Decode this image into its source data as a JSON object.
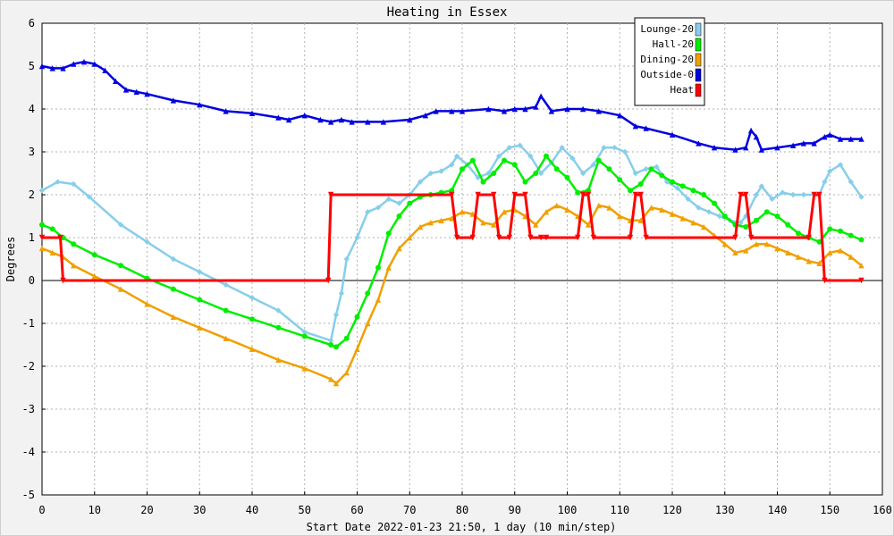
{
  "chart_data": {
    "type": "line",
    "title": "Heating in Essex",
    "xlabel": "Start Date 2022-01-23 21:50, 1 day (10 min/step)",
    "ylabel": "Degrees",
    "xlim": [
      0,
      160
    ],
    "ylim": [
      -5,
      6
    ],
    "xticks": [
      0,
      10,
      20,
      30,
      40,
      50,
      60,
      70,
      80,
      90,
      100,
      110,
      120,
      130,
      140,
      150,
      160
    ],
    "yticks": [
      -5,
      -4,
      -3,
      -2,
      -1,
      0,
      1,
      2,
      3,
      4,
      5,
      6
    ],
    "grid": true,
    "legend_position": "top-right",
    "series": [
      {
        "name": "Lounge-20",
        "color": "#87CEEB",
        "marker": "diamond",
        "x": [
          0,
          3,
          6,
          9,
          15,
          20,
          25,
          30,
          35,
          40,
          45,
          50,
          55,
          56,
          57,
          58,
          60,
          62,
          64,
          66,
          68,
          70,
          72,
          74,
          76,
          78,
          79,
          81,
          83,
          85,
          87,
          89,
          91,
          93,
          95,
          97,
          99,
          101,
          103,
          105,
          107,
          109,
          111,
          113,
          115,
          117,
          119,
          121,
          123,
          125,
          127,
          129,
          131,
          133,
          134,
          136,
          137,
          139,
          141,
          143,
          145,
          147,
          148,
          149,
          150,
          152,
          154,
          156
        ],
        "y": [
          2.1,
          2.3,
          2.25,
          1.95,
          1.3,
          0.9,
          0.5,
          0.2,
          -0.1,
          -0.4,
          -0.7,
          -1.2,
          -1.4,
          -0.8,
          -0.3,
          0.5,
          1.0,
          1.6,
          1.7,
          1.9,
          1.8,
          2.0,
          2.3,
          2.5,
          2.55,
          2.7,
          2.9,
          2.7,
          2.4,
          2.5,
          2.9,
          3.1,
          3.15,
          2.9,
          2.5,
          2.75,
          3.1,
          2.85,
          2.5,
          2.7,
          3.1,
          3.1,
          3.0,
          2.5,
          2.6,
          2.65,
          2.3,
          2.15,
          1.9,
          1.7,
          1.6,
          1.5,
          1.4,
          1.35,
          1.5,
          2.0,
          2.2,
          1.9,
          2.05,
          2.0,
          2.0,
          2.0,
          2.0,
          2.3,
          2.55,
          2.7,
          2.3,
          1.95
        ]
      },
      {
        "name": "Hall-20",
        "color": "#00EE00",
        "marker": "circle",
        "x": [
          0,
          2,
          4,
          6,
          10,
          15,
          20,
          25,
          30,
          35,
          40,
          45,
          50,
          55,
          56,
          58,
          60,
          62,
          64,
          66,
          68,
          70,
          72,
          74,
          76,
          78,
          80,
          82,
          84,
          86,
          88,
          90,
          92,
          94,
          96,
          98,
          100,
          102,
          104,
          106,
          108,
          110,
          112,
          114,
          116,
          118,
          120,
          122,
          124,
          126,
          128,
          130,
          132,
          134,
          136,
          138,
          140,
          142,
          144,
          146,
          148,
          150,
          152,
          154,
          156
        ],
        "y": [
          1.3,
          1.2,
          1.0,
          0.85,
          0.6,
          0.35,
          0.05,
          -0.2,
          -0.45,
          -0.7,
          -0.9,
          -1.1,
          -1.3,
          -1.5,
          -1.55,
          -1.35,
          -0.85,
          -0.3,
          0.3,
          1.1,
          1.5,
          1.8,
          1.95,
          2.0,
          2.05,
          2.1,
          2.6,
          2.8,
          2.3,
          2.5,
          2.8,
          2.7,
          2.3,
          2.5,
          2.9,
          2.6,
          2.4,
          2.05,
          2.1,
          2.8,
          2.6,
          2.35,
          2.1,
          2.25,
          2.6,
          2.45,
          2.3,
          2.2,
          2.1,
          2.0,
          1.8,
          1.5,
          1.3,
          1.25,
          1.4,
          1.6,
          1.5,
          1.3,
          1.1,
          1.0,
          0.9,
          1.2,
          1.15,
          1.05,
          0.95
        ]
      },
      {
        "name": "Dining-20",
        "color": "#F0A000",
        "marker": "triangle",
        "x": [
          0,
          2,
          4,
          6,
          10,
          15,
          20,
          25,
          30,
          35,
          40,
          45,
          50,
          55,
          56,
          58,
          60,
          62,
          64,
          66,
          68,
          70,
          72,
          74,
          76,
          78,
          80,
          82,
          84,
          86,
          88,
          90,
          92,
          94,
          96,
          98,
          100,
          102,
          104,
          106,
          108,
          110,
          112,
          114,
          116,
          118,
          120,
          122,
          124,
          126,
          128,
          130,
          132,
          134,
          136,
          138,
          140,
          142,
          144,
          146,
          148,
          150,
          152,
          154,
          156
        ],
        "y": [
          0.75,
          0.65,
          0.55,
          0.35,
          0.1,
          -0.2,
          -0.55,
          -0.85,
          -1.1,
          -1.35,
          -1.6,
          -1.85,
          -2.05,
          -2.3,
          -2.4,
          -2.15,
          -1.6,
          -1.0,
          -0.45,
          0.3,
          0.75,
          1.0,
          1.25,
          1.35,
          1.4,
          1.45,
          1.6,
          1.55,
          1.35,
          1.3,
          1.6,
          1.65,
          1.5,
          1.3,
          1.6,
          1.75,
          1.65,
          1.5,
          1.3,
          1.75,
          1.7,
          1.5,
          1.4,
          1.4,
          1.7,
          1.65,
          1.55,
          1.45,
          1.35,
          1.25,
          1.05,
          0.85,
          0.65,
          0.7,
          0.85,
          0.85,
          0.75,
          0.65,
          0.55,
          0.45,
          0.4,
          0.65,
          0.7,
          0.55,
          0.35
        ]
      },
      {
        "name": "Outside-0",
        "color": "#0000E0",
        "marker": "triangle",
        "x": [
          0,
          2,
          4,
          6,
          8,
          10,
          12,
          14,
          16,
          18,
          20,
          25,
          30,
          35,
          40,
          45,
          47,
          50,
          53,
          55,
          57,
          59,
          62,
          65,
          70,
          73,
          75,
          78,
          80,
          85,
          88,
          90,
          92,
          94,
          95,
          97,
          100,
          103,
          106,
          110,
          113,
          115,
          120,
          125,
          128,
          132,
          134,
          135,
          136,
          137,
          140,
          143,
          145,
          147,
          149,
          150,
          152,
          154,
          156
        ],
        "y": [
          5.0,
          4.95,
          4.95,
          5.05,
          5.1,
          5.05,
          4.9,
          4.65,
          4.45,
          4.4,
          4.35,
          4.2,
          4.1,
          3.95,
          3.9,
          3.8,
          3.75,
          3.85,
          3.75,
          3.7,
          3.75,
          3.7,
          3.7,
          3.7,
          3.75,
          3.85,
          3.95,
          3.95,
          3.95,
          4.0,
          3.95,
          4.0,
          4.0,
          4.05,
          4.3,
          3.95,
          4.0,
          4.0,
          3.95,
          3.85,
          3.6,
          3.55,
          3.4,
          3.2,
          3.1,
          3.05,
          3.1,
          3.5,
          3.35,
          3.05,
          3.1,
          3.15,
          3.2,
          3.2,
          3.35,
          3.4,
          3.3,
          3.3,
          3.3
        ]
      },
      {
        "name": "Heat",
        "color": "#FF0000",
        "marker": "triangle-down",
        "x": [
          0,
          3.5,
          4,
          54.5,
          55,
          78,
          79,
          82,
          83,
          86,
          87,
          89,
          90,
          92,
          93,
          95,
          96,
          102,
          103,
          104,
          105,
          112,
          113,
          114,
          115,
          132,
          133,
          134,
          135,
          146,
          147,
          148,
          149,
          156
        ],
        "y": [
          1,
          1,
          0,
          0,
          2,
          2,
          1,
          1,
          2,
          2,
          1,
          1,
          2,
          2,
          1,
          1,
          1,
          1,
          2,
          2,
          1,
          1,
          2,
          2,
          1,
          1,
          2,
          2,
          1,
          1,
          2,
          2,
          0,
          0
        ]
      }
    ]
  }
}
